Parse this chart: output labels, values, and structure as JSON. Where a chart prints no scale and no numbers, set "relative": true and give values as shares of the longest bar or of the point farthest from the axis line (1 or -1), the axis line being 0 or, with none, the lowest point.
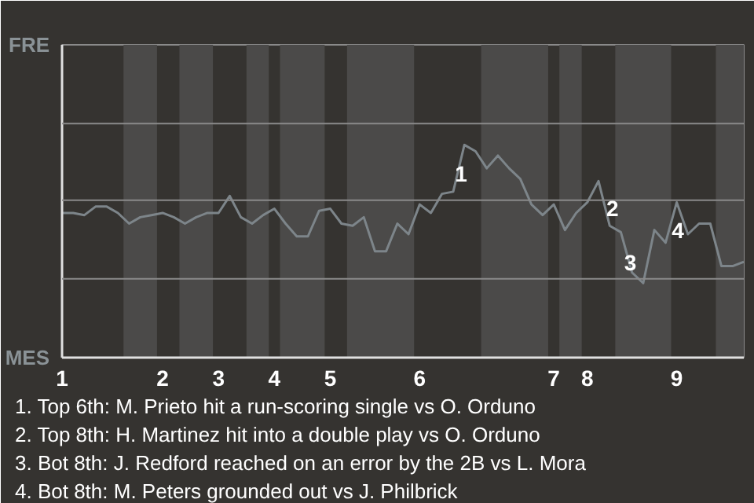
{
  "chart_data": {
    "type": "line",
    "relative": true,
    "categories": [
      "1",
      null,
      null,
      null,
      null,
      null,
      null,
      null,
      null,
      "2",
      null,
      null,
      null,
      null,
      "3",
      null,
      null,
      null,
      null,
      "4",
      null,
      null,
      null,
      null,
      "5",
      null,
      null,
      null,
      null,
      null,
      null,
      null,
      "6",
      null,
      null,
      null,
      null,
      null,
      null,
      null,
      null,
      null,
      null,
      null,
      "7",
      null,
      null,
      "8",
      null,
      null,
      null,
      null,
      null,
      null,
      null,
      "9",
      null,
      null,
      null,
      null,
      null,
      null
    ],
    "series": [
      {
        "color": "#7d858a",
        "values": [
          0.68,
          0.68,
          0.67,
          0.71,
          0.71,
          0.68,
          0.63,
          0.66,
          0.67,
          0.68,
          0.66,
          0.63,
          0.66,
          0.68,
          0.68,
          0.76,
          0.66,
          0.63,
          0.67,
          0.7,
          0.63,
          0.57,
          0.57,
          0.69,
          0.7,
          0.63,
          0.62,
          0.66,
          0.5,
          0.5,
          0.63,
          0.58,
          0.72,
          0.68,
          0.77,
          0.78,
          1,
          0.97,
          0.89,
          0.95,
          0.89,
          0.84,
          0.72,
          0.67,
          0.72,
          0.6,
          0.68,
          0.73,
          0.83,
          0.62,
          0.59,
          0.4,
          0.35,
          0.6,
          0.54,
          0.73,
          0.58,
          0.63,
          0.63,
          0.43,
          0.43,
          0.45
        ]
      }
    ],
    "marker": "none",
    "line_style": "solid",
    "ref_lines": [
      {
        "axis": "y",
        "value": 0.37,
        "color": "#8a8a8a"
      },
      {
        "axis": "y",
        "value": 0.74,
        "color": "#8a8a8a"
      },
      {
        "axis": "y",
        "value": 1.1,
        "color": "#8a8a8a"
      }
    ],
    "annotations": [
      "FRE",
      "MES",
      "1",
      "2",
      "3",
      "4",
      "1. Top 6th: M. Prieto hit a run-scoring single vs O. Orduno",
      "2. Top 8th: H. Martinez hit into a double play vs O. Orduno",
      "3. Bot 8th: J. Redford reached on an error by the 2B vs L. Mora",
      "4. Bot 8th: M. Peters grounded out vs J. Philbrick"
    ]
  }
}
